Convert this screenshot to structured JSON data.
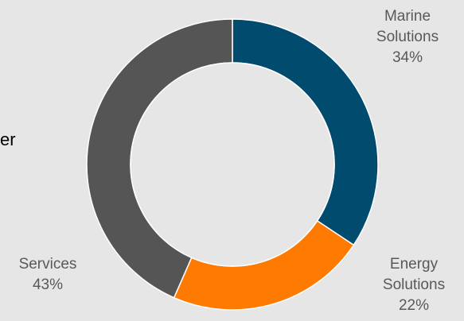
{
  "chart_data": {
    "type": "pie",
    "donut": true,
    "title": "",
    "slices": [
      {
        "name": "Marine Solutions",
        "value": 34,
        "color": "#004b6e",
        "label_lines": [
          "Marine",
          "Solutions",
          "34%"
        ]
      },
      {
        "name": "Energy Solutions",
        "value": 22,
        "color": "#ff7a00",
        "label_lines": [
          "Energy",
          "Solutions",
          "22%"
        ]
      },
      {
        "name": "Services",
        "value": 43,
        "color": "#555555",
        "label_lines": [
          "Services",
          "43%"
        ]
      }
    ]
  },
  "clipped_text": "er"
}
